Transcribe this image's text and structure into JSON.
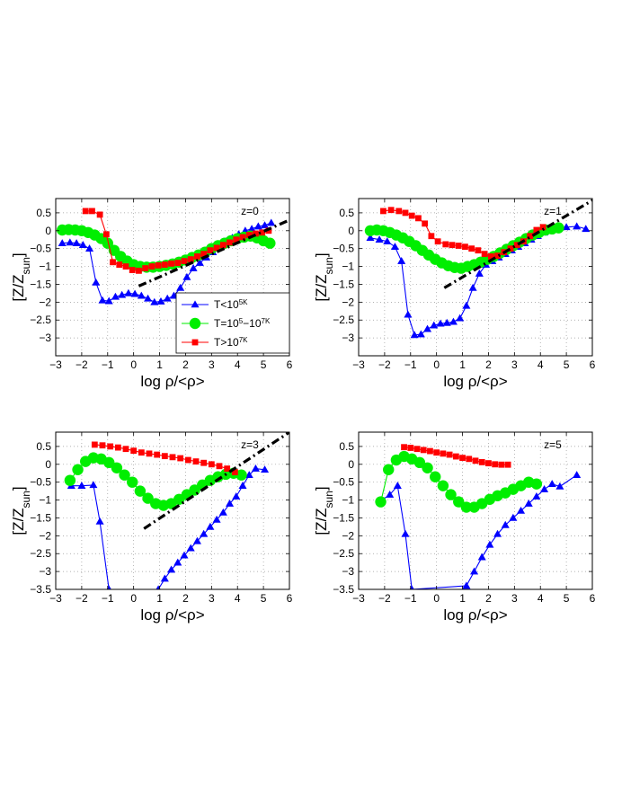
{
  "chart_data": [
    {
      "type": "line",
      "annotation": "z=0",
      "xlabel": "log ρ/<ρ>",
      "ylabel": "[Z/Z_sun]",
      "xlim": [
        -3,
        6
      ],
      "ylim": [
        -3.5,
        0.9
      ],
      "xticks": [
        -3,
        -2,
        -1,
        0,
        1,
        2,
        3,
        4,
        5,
        6
      ],
      "yticks": [
        0.5,
        0,
        -0.5,
        -1,
        -1.5,
        -2,
        -2.5,
        -3
      ],
      "grid": true,
      "legend": "inside",
      "series": [
        {
          "name": "T<10^5K",
          "color": "#0000ff",
          "marker": "triangle",
          "x": [
            -2.75,
            -2.45,
            -2.2,
            -1.95,
            -1.7,
            -1.45,
            -1.2,
            -0.95,
            -0.7,
            -0.45,
            -0.2,
            0.05,
            0.3,
            0.55,
            0.8,
            1.05,
            1.3,
            1.55,
            1.8,
            2.05,
            2.3,
            2.55,
            2.8,
            3.05,
            3.3,
            3.55,
            3.8,
            4.05,
            4.3,
            4.55,
            4.8,
            5.05,
            5.3
          ],
          "y": [
            -0.35,
            -0.33,
            -0.35,
            -0.4,
            -0.5,
            -1.45,
            -1.95,
            -1.97,
            -1.85,
            -1.8,
            -1.75,
            -1.77,
            -1.82,
            -1.9,
            -2.0,
            -1.98,
            -1.9,
            -1.82,
            -1.6,
            -1.3,
            -1.05,
            -0.9,
            -0.75,
            -0.6,
            -0.45,
            -0.3,
            -0.2,
            -0.1,
            0.0,
            0.05,
            0.12,
            0.15,
            0.22
          ]
        },
        {
          "name": "T=10^5-10^7K",
          "color": "#00ee00",
          "marker": "circle",
          "x": [
            -2.75,
            -2.5,
            -2.25,
            -2.0,
            -1.75,
            -1.5,
            -1.25,
            -1.0,
            -0.75,
            -0.5,
            -0.25,
            0.0,
            0.25,
            0.5,
            0.75,
            1.0,
            1.25,
            1.5,
            1.75,
            2.0,
            2.25,
            2.5,
            2.75,
            3.0,
            3.25,
            3.5,
            3.75,
            4.0,
            4.25,
            4.5,
            4.75,
            5.0,
            5.25
          ],
          "y": [
            0.02,
            0.03,
            0.02,
            0.0,
            -0.05,
            -0.12,
            -0.22,
            -0.35,
            -0.55,
            -0.72,
            -0.85,
            -0.95,
            -1.0,
            -1.02,
            -1.02,
            -1.0,
            -0.97,
            -0.93,
            -0.88,
            -0.82,
            -0.75,
            -0.68,
            -0.6,
            -0.5,
            -0.42,
            -0.35,
            -0.28,
            -0.22,
            -0.18,
            -0.15,
            -0.2,
            -0.28,
            -0.35
          ]
        },
        {
          "name": "T>10^7K",
          "color": "#ff0000",
          "marker": "square",
          "x": [
            -1.85,
            -1.6,
            -1.3,
            -1.05,
            -0.8,
            -0.55,
            -0.3,
            -0.05,
            0.2,
            0.45,
            0.7,
            0.95,
            1.2,
            1.45,
            1.7,
            1.95,
            2.2,
            2.45,
            2.7,
            2.95,
            3.2,
            3.45,
            3.7,
            3.95,
            4.2,
            4.45,
            4.7,
            4.95,
            5.2
          ],
          "y": [
            0.55,
            0.55,
            0.45,
            -0.1,
            -0.88,
            -0.95,
            -1.0,
            -1.1,
            -1.12,
            -1.05,
            -1.0,
            -0.97,
            -0.95,
            -0.92,
            -0.9,
            -0.85,
            -0.8,
            -0.72,
            -0.65,
            -0.55,
            -0.48,
            -0.4,
            -0.33,
            -0.25,
            -0.18,
            -0.12,
            -0.08,
            -0.05,
            0.0
          ]
        },
        {
          "name": "",
          "color": "#000000",
          "style": "dash-dot",
          "x": [
            0.2,
            6.0
          ],
          "y": [
            -1.55,
            0.3
          ]
        }
      ]
    },
    {
      "type": "line",
      "annotation": "z=1",
      "xlabel": "log ρ/<ρ>",
      "ylabel": "[Z/Z_sun]",
      "xlim": [
        -3,
        6
      ],
      "ylim": [
        -3.5,
        0.9
      ],
      "xticks": [
        -3,
        -2,
        -1,
        0,
        1,
        2,
        3,
        4,
        5,
        6
      ],
      "yticks": [
        0.5,
        0,
        -0.5,
        -1,
        -1.5,
        -2,
        -2.5,
        -3
      ],
      "grid": true,
      "series": [
        {
          "name": "T<10^5K",
          "color": "#0000ff",
          "marker": "triangle",
          "x": [
            -2.55,
            -2.2,
            -1.9,
            -1.6,
            -1.35,
            -1.1,
            -0.85,
            -0.6,
            -0.35,
            -0.1,
            0.15,
            0.4,
            0.65,
            0.9,
            1.15,
            1.4,
            1.65,
            1.9,
            2.15,
            2.4,
            2.65,
            2.9,
            3.15,
            3.4,
            3.65,
            3.9,
            4.15,
            4.4,
            4.65,
            5.0,
            5.4,
            5.75
          ],
          "y": [
            -0.2,
            -0.25,
            -0.3,
            -0.45,
            -0.85,
            -2.35,
            -2.92,
            -2.9,
            -2.75,
            -2.65,
            -2.6,
            -2.58,
            -2.55,
            -2.45,
            -2.1,
            -1.6,
            -1.2,
            -0.95,
            -0.85,
            -0.75,
            -0.65,
            -0.55,
            -0.45,
            -0.35,
            -0.25,
            -0.15,
            -0.05,
            0.0,
            0.05,
            0.1,
            0.12,
            0.05
          ]
        },
        {
          "name": "T=10^5-10^7K",
          "color": "#00ee00",
          "marker": "circle",
          "x": [
            -2.55,
            -2.3,
            -2.05,
            -1.8,
            -1.55,
            -1.3,
            -1.05,
            -0.8,
            -0.55,
            -0.3,
            -0.05,
            0.2,
            0.45,
            0.7,
            0.95,
            1.2,
            1.45,
            1.7,
            1.95,
            2.2,
            2.45,
            2.7,
            2.95,
            3.2,
            3.45,
            3.7,
            3.95,
            4.2,
            4.45,
            4.7
          ],
          "y": [
            0.0,
            0.02,
            0.0,
            -0.05,
            -0.12,
            -0.2,
            -0.3,
            -0.42,
            -0.55,
            -0.68,
            -0.8,
            -0.9,
            -0.98,
            -1.03,
            -1.05,
            -1.0,
            -0.95,
            -0.88,
            -0.8,
            -0.72,
            -0.62,
            -0.52,
            -0.42,
            -0.32,
            -0.22,
            -0.12,
            -0.05,
            0.02,
            0.05,
            0.08
          ]
        },
        {
          "name": "T>10^7K",
          "color": "#ff0000",
          "marker": "square",
          "x": [
            -2.05,
            -1.75,
            -1.45,
            -1.2,
            -0.95,
            -0.7,
            -0.45,
            -0.2,
            0.05,
            0.35,
            0.6,
            0.85,
            1.1,
            1.35,
            1.6,
            1.85,
            2.1,
            2.35,
            2.6,
            2.85,
            3.1,
            3.35,
            3.6,
            3.85,
            4.1
          ],
          "y": [
            0.55,
            0.58,
            0.55,
            0.5,
            0.42,
            0.35,
            0.2,
            -0.15,
            -0.3,
            -0.38,
            -0.4,
            -0.42,
            -0.45,
            -0.5,
            -0.55,
            -0.65,
            -0.72,
            -0.7,
            -0.6,
            -0.5,
            -0.4,
            -0.3,
            -0.15,
            0.02,
            0.1
          ]
        },
        {
          "name": "",
          "color": "#000000",
          "style": "dash-dot",
          "x": [
            0.3,
            6.0
          ],
          "y": [
            -1.6,
            0.85
          ]
        }
      ]
    },
    {
      "type": "line",
      "annotation": "z=3",
      "xlabel": "log ρ/<ρ>",
      "ylabel": "[Z/Z_sun]",
      "xlim": [
        -3,
        6
      ],
      "ylim": [
        -3.5,
        0.9
      ],
      "xticks": [
        -3,
        -2,
        -1,
        0,
        1,
        2,
        3,
        4,
        5,
        6
      ],
      "yticks": [
        0.5,
        0,
        -0.5,
        -1,
        -1.5,
        -2,
        -2.5,
        -3,
        -3.5
      ],
      "grid": true,
      "series": [
        {
          "name": "T<10^5K",
          "color": "#0000ff",
          "marker": "triangle",
          "x": [
            -2.4,
            -2.0,
            -1.55,
            -1.3,
            -0.95,
            0.95,
            1.2,
            1.45,
            1.7,
            1.95,
            2.2,
            2.45,
            2.7,
            2.95,
            3.2,
            3.45,
            3.7,
            3.95,
            4.2,
            4.45,
            4.7,
            5.05
          ],
          "y": [
            -0.6,
            -0.6,
            -0.58,
            -1.6,
            -3.5,
            -3.5,
            -3.2,
            -2.95,
            -2.75,
            -2.55,
            -2.35,
            -2.15,
            -1.95,
            -1.75,
            -1.55,
            -1.35,
            -1.1,
            -0.9,
            -0.6,
            -0.3,
            -0.12,
            -0.15
          ]
        },
        {
          "name": "T=10^5-10^7K",
          "color": "#00ee00",
          "marker": "circle",
          "x": [
            -2.45,
            -2.15,
            -1.85,
            -1.55,
            -1.25,
            -0.95,
            -0.65,
            -0.35,
            -0.05,
            0.25,
            0.55,
            0.85,
            1.15,
            1.45,
            1.75,
            2.05,
            2.35,
            2.65,
            2.95,
            3.25,
            3.55,
            3.85,
            4.15
          ],
          "y": [
            -0.45,
            -0.15,
            0.08,
            0.18,
            0.15,
            0.05,
            -0.1,
            -0.3,
            -0.5,
            -0.75,
            -0.95,
            -1.1,
            -1.15,
            -1.1,
            -0.98,
            -0.85,
            -0.72,
            -0.58,
            -0.45,
            -0.35,
            -0.28,
            -0.25,
            -0.3
          ]
        },
        {
          "name": "T>10^7K",
          "color": "#ff0000",
          "marker": "square",
          "x": [
            -1.5,
            -1.2,
            -0.9,
            -0.6,
            -0.3,
            0.0,
            0.3,
            0.6,
            0.9,
            1.2,
            1.5,
            1.8,
            2.1,
            2.4,
            2.7,
            3.0,
            3.3,
            3.6,
            3.9
          ],
          "y": [
            0.55,
            0.53,
            0.5,
            0.47,
            0.43,
            0.38,
            0.33,
            0.3,
            0.27,
            0.23,
            0.2,
            0.17,
            0.12,
            0.08,
            0.04,
            0.0,
            -0.05,
            -0.12,
            -0.22
          ]
        },
        {
          "name": "",
          "color": "#000000",
          "style": "dash-dot",
          "x": [
            0.4,
            6.0
          ],
          "y": [
            -1.8,
            0.9
          ]
        }
      ]
    },
    {
      "type": "line",
      "annotation": "z=5",
      "xlabel": "log ρ/<ρ>",
      "ylabel": "[Z/Z_sun]",
      "xlim": [
        -3,
        6
      ],
      "ylim": [
        -3.5,
        0.9
      ],
      "xticks": [
        -3,
        -2,
        -1,
        0,
        1,
        2,
        3,
        4,
        5,
        6
      ],
      "yticks": [
        0.5,
        0,
        -0.5,
        -1,
        -1.5,
        -2,
        -2.5,
        -3,
        -3.5
      ],
      "grid": true,
      "series": [
        {
          "name": "T<10^5K",
          "color": "#0000ff",
          "marker": "triangle",
          "x": [
            -2.1,
            -1.8,
            -1.5,
            -1.2,
            -0.95,
            1.15,
            1.45,
            1.75,
            2.05,
            2.35,
            2.65,
            2.95,
            3.25,
            3.55,
            3.85,
            4.15,
            4.45,
            4.75,
            5.4
          ],
          "y": [
            -1.0,
            -0.85,
            -0.6,
            -1.95,
            -3.5,
            -3.4,
            -3.0,
            -2.6,
            -2.25,
            -1.95,
            -1.7,
            -1.5,
            -1.3,
            -1.1,
            -0.9,
            -0.7,
            -0.55,
            -0.62,
            -0.3
          ]
        },
        {
          "name": "T=10^5-10^7K",
          "color": "#00ee00",
          "marker": "circle",
          "x": [
            -2.15,
            -1.85,
            -1.55,
            -1.25,
            -0.95,
            -0.65,
            -0.35,
            -0.05,
            0.25,
            0.55,
            0.85,
            1.15,
            1.45,
            1.75,
            2.05,
            2.35,
            2.65,
            2.95,
            3.25,
            3.55,
            3.85
          ],
          "y": [
            -1.05,
            -0.15,
            0.12,
            0.22,
            0.15,
            0.05,
            -0.1,
            -0.35,
            -0.6,
            -0.85,
            -1.05,
            -1.2,
            -1.2,
            -1.1,
            -0.98,
            -0.88,
            -0.8,
            -0.7,
            -0.6,
            -0.5,
            -0.55
          ]
        },
        {
          "name": "T>10^7K",
          "color": "#ff0000",
          "marker": "square",
          "x": [
            -1.25,
            -1.0,
            -0.75,
            -0.5,
            -0.25,
            0.0,
            0.25,
            0.5,
            0.75,
            1.0,
            1.25,
            1.5,
            1.75,
            2.0,
            2.25,
            2.5,
            2.75
          ],
          "y": [
            0.48,
            0.46,
            0.43,
            0.4,
            0.37,
            0.33,
            0.3,
            0.27,
            0.22,
            0.18,
            0.15,
            0.1,
            0.06,
            0.03,
            0.0,
            -0.01,
            -0.01
          ]
        }
      ]
    }
  ]
}
